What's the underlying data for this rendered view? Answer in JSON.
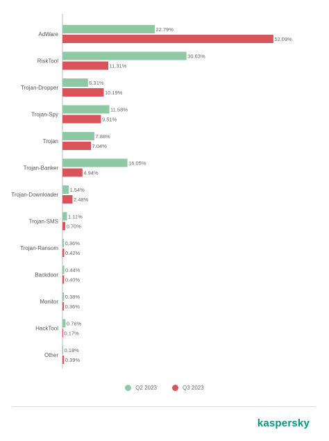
{
  "chart_data": {
    "type": "bar",
    "orientation": "horizontal",
    "categories": [
      "AdWare",
      "RiskTool",
      "Trojan-Dropper",
      "Trojan-Spy",
      "Trojan",
      "Trojan-Banker",
      "Trojan-Downloader",
      "Trojan-SMS",
      "Trojan-Ransom",
      "Backdoor",
      "Monitor",
      "HackTool",
      "Other"
    ],
    "series": [
      {
        "name": "Q2 2023",
        "color": "#8ec9a4",
        "values": [
          22.79,
          30.63,
          6.31,
          11.58,
          7.88,
          16.05,
          1.54,
          1.11,
          0.36,
          0.44,
          0.38,
          0.76,
          0.18
        ],
        "labels": [
          "22.79%",
          "30.63%",
          "6.31%",
          "11.58%",
          "7.88%",
          "16.05%",
          "1.54%",
          "1.11%",
          "0.36%",
          "0.44%",
          "0.38%",
          "0.76%",
          "0.18%"
        ]
      },
      {
        "name": "Q3 2023",
        "color": "#d9535a",
        "values": [
          52.09,
          11.31,
          10.19,
          9.51,
          7.04,
          4.94,
          2.48,
          0.7,
          0.42,
          0.4,
          0.36,
          0.17,
          0.39
        ],
        "labels": [
          "52.09%",
          "11.31%",
          "10.19%",
          "9.51%",
          "7.04%",
          "4.94%",
          "2.48%",
          "0.70%",
          "0.42%",
          "0.40%",
          "0.36%",
          "0.17%",
          "0.39%"
        ]
      }
    ],
    "xlim": [
      0,
      60
    ],
    "x_ticks": [
      0,
      5,
      10,
      15,
      20,
      25,
      30,
      35,
      40,
      45,
      50,
      55,
      60
    ],
    "x_tick_labels": [
      "0",
      "5%",
      "10%",
      "15%",
      "20%",
      "25%",
      "30%",
      "35%",
      "40%",
      "45%",
      "50%",
      "55%",
      "60%"
    ],
    "grid": false,
    "legend_position": "bottom-center"
  },
  "legend": {
    "items": [
      {
        "label": "Q2 2023",
        "color": "#8ec9a4"
      },
      {
        "label": "Q3 2023",
        "color": "#d9535a"
      }
    ]
  },
  "brand": {
    "name": "kaspersky",
    "color": "#009982"
  }
}
